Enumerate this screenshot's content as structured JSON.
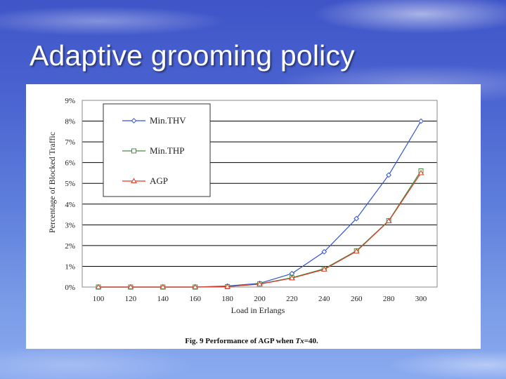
{
  "slide": {
    "title": "Adaptive grooming policy"
  },
  "figure": {
    "caption_prefix": "Fig. 9 Performance of AGP when ",
    "caption_var": "Tx",
    "caption_suffix": "=40."
  },
  "colors": {
    "Min.THV": "#3355cc",
    "Min.THP": "#3f8f3f",
    "AGP": "#dd3a2a"
  },
  "chart_data": {
    "type": "line",
    "title": "",
    "xlabel": "Load in Erlangs",
    "ylabel": "Percentage of Blocked Traffic",
    "x": [
      100,
      120,
      140,
      160,
      180,
      200,
      220,
      240,
      260,
      280,
      300
    ],
    "x_tick_labels": [
      "100",
      "120",
      "140",
      "160",
      "180",
      "200",
      "220",
      "240",
      "260",
      "280",
      "300"
    ],
    "y_tick_labels": [
      "0%",
      "1%",
      "2%",
      "3%",
      "4%",
      "5%",
      "6%",
      "7%",
      "8%",
      "9%"
    ],
    "ylim": [
      0,
      9
    ],
    "grid": true,
    "legend_position": "top-left",
    "series": [
      {
        "name": "Min.THV",
        "marker": "diamond",
        "values": [
          0,
          0,
          0,
          0,
          0.05,
          0.18,
          0.65,
          1.7,
          3.3,
          5.4,
          8.0
        ]
      },
      {
        "name": "Min.THP",
        "marker": "square",
        "values": [
          0,
          0,
          0,
          0,
          0.02,
          0.15,
          0.45,
          0.88,
          1.75,
          3.2,
          5.6
        ]
      },
      {
        "name": "AGP",
        "marker": "triangle",
        "values": [
          0,
          0,
          0,
          0,
          0.02,
          0.14,
          0.43,
          0.85,
          1.72,
          3.18,
          5.5
        ]
      }
    ]
  }
}
